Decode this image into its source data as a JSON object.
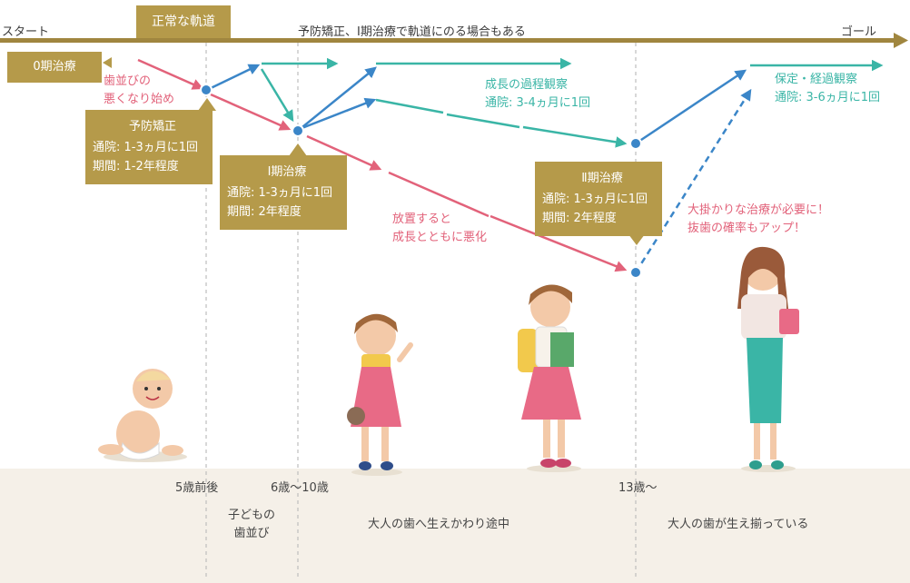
{
  "timeline": {
    "start": "スタート",
    "goal": "ゴール",
    "on_track": "正常な軌道",
    "note": "予防矯正、Ⅰ期治療で軌道にのる場合もある"
  },
  "phase0": "0期治療",
  "worsening_start": [
    "歯並びの",
    "悪くなり始め"
  ],
  "prevention_box": {
    "title": "予防矯正",
    "visits": "通院: 1-3ヵ月に1回",
    "period": "期間: 1-2年程度"
  },
  "phase1_box": {
    "title": "Ⅰ期治療",
    "visits": "通院: 1-3ヵ月に1回",
    "period": "期間: 2年程度"
  },
  "phase2_box": {
    "title": "Ⅱ期治療",
    "visits": "通院: 1-3ヵ月に1回",
    "period": "期間: 2年程度"
  },
  "growth_observation": {
    "title": "成長の過程観察",
    "visits": "通院: 3-4ヵ月に1回"
  },
  "retention": {
    "title": "保定・経過観察",
    "visits": "通院: 3-6ヵ月に1回"
  },
  "neglect": [
    "放置すると",
    "成長とともに悪化"
  ],
  "major_treatment": [
    "大掛かりな治療が必要に！",
    "抜歯の確率もアップ！"
  ],
  "ages": {
    "a1": "5歳前後",
    "a2": "6歳〜10歳",
    "a3": "13歳〜"
  },
  "stages": {
    "child": [
      "子どもの",
      "歯並び"
    ],
    "transition": "大人の歯へ生えかわり途中",
    "adult": "大人の歯が生え揃っている"
  },
  "colors": {
    "gold": "#b59a4a",
    "pink": "#e2627a",
    "teal": "#3ab5a6",
    "blue": "#3b86c8",
    "band": "#f5f0e8"
  }
}
